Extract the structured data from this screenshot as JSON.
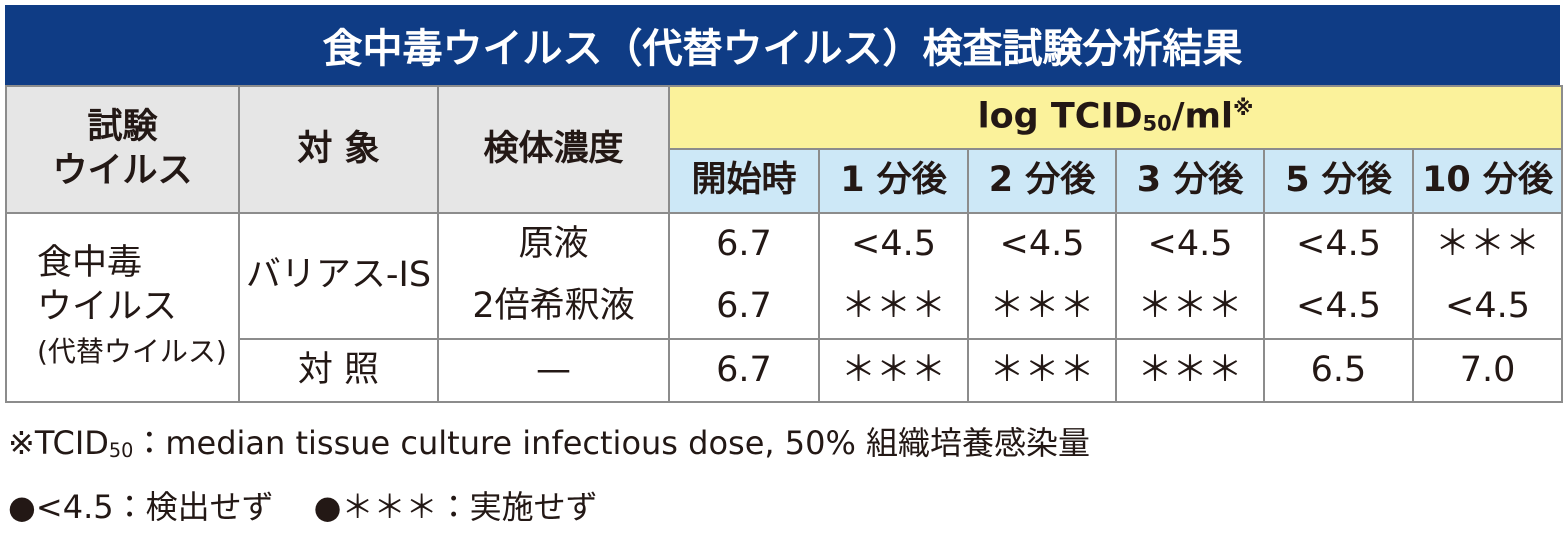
{
  "title": "食中毒ウイルス（代替ウイルス）検査試験分析結果",
  "table": {
    "header": {
      "virus": [
        "試験",
        "ウイルス"
      ],
      "target": "対 象",
      "concentration": "検体濃度",
      "unit": {
        "prefix": "log TCID",
        "sub": "50",
        "suffix": "/ml",
        "mark": "※"
      },
      "times": [
        "開始時",
        "1 分後",
        "2 分後",
        "3 分後",
        "5 分後",
        "10 分後"
      ]
    },
    "rows": [
      {
        "virus": [
          "食中毒",
          "ウイルス",
          "(代替ウイルス)"
        ],
        "groups": [
          {
            "target": "バリアス-IS",
            "lines": [
              {
                "concentration": "原液",
                "values": [
                  "6.7",
                  "<4.5",
                  "<4.5",
                  "<4.5",
                  "<4.5",
                  "＊＊＊"
                ]
              },
              {
                "concentration": "2倍希釈液",
                "values": [
                  "6.7",
                  "＊＊＊",
                  "＊＊＊",
                  "＊＊＊",
                  "<4.5",
                  "<4.5"
                ]
              }
            ]
          },
          {
            "target": "対 照",
            "lines": [
              {
                "concentration": "—",
                "values": [
                  "6.7",
                  "＊＊＊",
                  "＊＊＊",
                  "＊＊＊",
                  "6.5",
                  "7.0"
                ]
              }
            ]
          }
        ]
      }
    ]
  },
  "footnotes": [
    {
      "prefix": "※TCID",
      "sub": "50",
      "text": "：median tissue culture infectious dose, 50% 組織培養感染量"
    },
    {
      "items": [
        "●<4.5：検出せず",
        "●＊＊＊：実施せず"
      ]
    }
  ]
}
